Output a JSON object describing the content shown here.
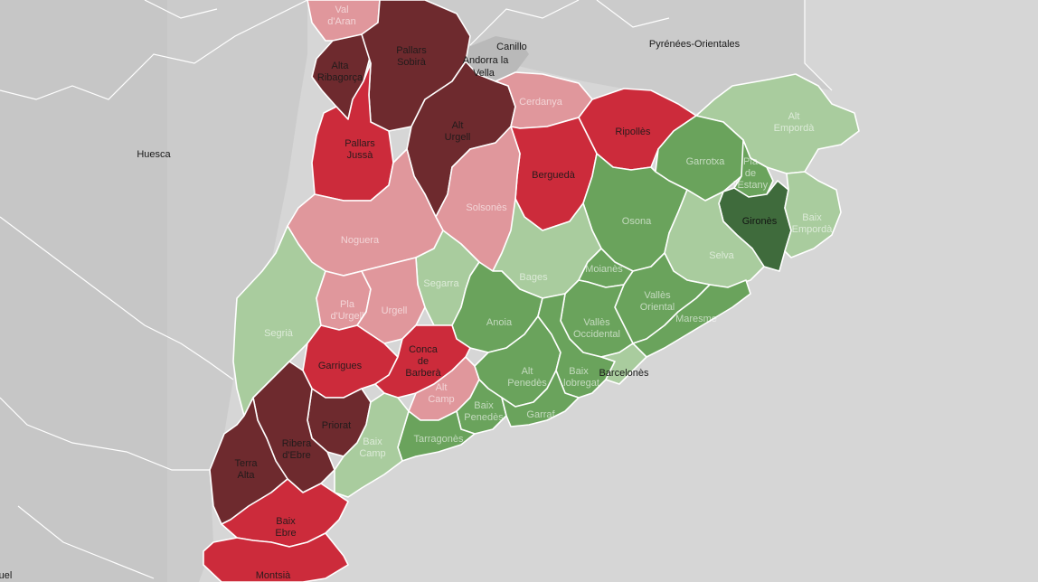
{
  "colors": {
    "sea": "#d6d6d6",
    "land_outside": "#cbcbcb",
    "land_outside_dark": "#bdbdbd",
    "dark_red": "#6e2a2e",
    "red": "#cc2b3b",
    "light_red": "#e0979c",
    "light_green": "#a9cc9e",
    "green": "#6aa35c",
    "dark_green": "#3f6b3c"
  },
  "places": [
    {
      "key": "huesca",
      "label": "Huesca"
    },
    {
      "key": "canillo",
      "label": "Canillo"
    },
    {
      "key": "andorra_la",
      "label": "Andorra la"
    },
    {
      "key": "vella",
      "label": "Vella"
    },
    {
      "key": "pyrenees",
      "label": "Pyrénées-Orientales"
    },
    {
      "key": "barcelones",
      "label": "Barcelonès"
    },
    {
      "key": "edge",
      "label": "uel"
    }
  ],
  "counties": [
    {
      "key": "val_daran",
      "lines": [
        "Val",
        "d'Aran"
      ],
      "fill": "light_red"
    },
    {
      "key": "alta_ribagorca",
      "lines": [
        "Alta",
        "Ribagorça"
      ],
      "fill": "dark_red"
    },
    {
      "key": "pallars_sobira",
      "lines": [
        "Pallars",
        "Sobirà"
      ],
      "fill": "dark_red"
    },
    {
      "key": "alt_urgell",
      "lines": [
        "Alt",
        "Urgell"
      ],
      "fill": "dark_red"
    },
    {
      "key": "cerdanya",
      "lines": [
        "Cerdanya"
      ],
      "fill": "light_red"
    },
    {
      "key": "ripolles",
      "lines": [
        "Ripollès"
      ],
      "fill": "red"
    },
    {
      "key": "alt_emporda",
      "lines": [
        "Alt",
        "Empordà"
      ],
      "fill": "light_green"
    },
    {
      "key": "pallars_jussa",
      "lines": [
        "Pallars",
        "Jussà"
      ],
      "fill": "red"
    },
    {
      "key": "bergueda",
      "lines": [
        "Berguedà"
      ],
      "fill": "red"
    },
    {
      "key": "garrotxa",
      "lines": [
        "Garrotxa"
      ],
      "fill": "green"
    },
    {
      "key": "pla_estany",
      "lines": [
        "Pla",
        "de",
        "l'Estany"
      ],
      "fill": "green"
    },
    {
      "key": "solsones",
      "lines": [
        "Solsonès"
      ],
      "fill": "light_red"
    },
    {
      "key": "osona",
      "lines": [
        "Osona"
      ],
      "fill": "green"
    },
    {
      "key": "girones",
      "lines": [
        "Gironès"
      ],
      "fill": "dark_green"
    },
    {
      "key": "baix_emporda",
      "lines": [
        "Baix",
        "Empordà"
      ],
      "fill": "light_green"
    },
    {
      "key": "noguera",
      "lines": [
        "Noguera"
      ],
      "fill": "light_red"
    },
    {
      "key": "bages",
      "lines": [
        "Bages"
      ],
      "fill": "light_green"
    },
    {
      "key": "selva",
      "lines": [
        "Selva"
      ],
      "fill": "light_green"
    },
    {
      "key": "segarra",
      "lines": [
        "Segarra"
      ],
      "fill": "light_green"
    },
    {
      "key": "moianes",
      "lines": [
        "Moianès"
      ],
      "fill": "green"
    },
    {
      "key": "segria",
      "lines": [
        "Segrià"
      ],
      "fill": "light_green"
    },
    {
      "key": "pla_urgell",
      "lines": [
        "Pla",
        "d'Urgell"
      ],
      "fill": "light_red"
    },
    {
      "key": "urgell",
      "lines": [
        "Urgell"
      ],
      "fill": "light_red"
    },
    {
      "key": "anoia",
      "lines": [
        "Anoia"
      ],
      "fill": "green"
    },
    {
      "key": "valles_oriental",
      "lines": [
        "Vallès",
        "Oriental"
      ],
      "fill": "green"
    },
    {
      "key": "valles_occidental",
      "lines": [
        "Vallès",
        "Occidental"
      ],
      "fill": "green"
    },
    {
      "key": "maresme",
      "lines": [
        "Maresme"
      ],
      "fill": "green"
    },
    {
      "key": "garrigues",
      "lines": [
        "Garrigues"
      ],
      "fill": "red"
    },
    {
      "key": "conca_barbera",
      "lines": [
        "Conca",
        "de",
        "Barberà"
      ],
      "fill": "red"
    },
    {
      "key": "alt_camp",
      "lines": [
        "Alt",
        "Camp"
      ],
      "fill": "light_red"
    },
    {
      "key": "alt_penedes",
      "lines": [
        "Alt",
        "Penedès"
      ],
      "fill": "green"
    },
    {
      "key": "baix_llobregat",
      "lines": [
        "Baix",
        "Llobregat"
      ],
      "fill": "green"
    },
    {
      "key": "barcelones",
      "lines": [
        ""
      ],
      "fill": "light_green"
    },
    {
      "key": "baix_penedes",
      "lines": [
        "Baix",
        "Penedès"
      ],
      "fill": "green"
    },
    {
      "key": "garraf",
      "lines": [
        "Garraf"
      ],
      "fill": "green"
    },
    {
      "key": "priorat",
      "lines": [
        "Priorat"
      ],
      "fill": "dark_red"
    },
    {
      "key": "ribera_debre",
      "lines": [
        "Ribera",
        "d'Ebre"
      ],
      "fill": "dark_red"
    },
    {
      "key": "tarragones",
      "lines": [
        "Tarragonès"
      ],
      "fill": "green"
    },
    {
      "key": "baix_camp",
      "lines": [
        "Baix",
        "Camp"
      ],
      "fill": "light_green"
    },
    {
      "key": "terra_alta",
      "lines": [
        "Terra",
        "Alta"
      ],
      "fill": "dark_red"
    },
    {
      "key": "baix_ebre",
      "lines": [
        "Baix",
        "Ebre"
      ],
      "fill": "red"
    },
    {
      "key": "montsia",
      "lines": [
        "Montsià"
      ],
      "fill": "red"
    }
  ]
}
